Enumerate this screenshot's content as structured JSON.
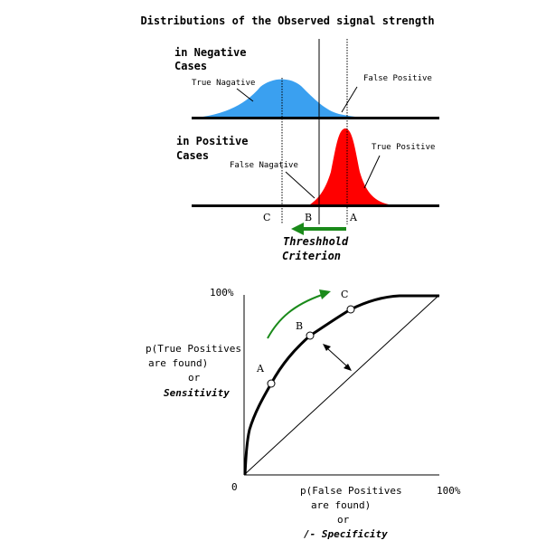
{
  "title": "Distributions of the Observed signal strength",
  "negative_panel": {
    "heading_line1": "in Negative",
    "heading_line2": "Cases",
    "label_true_negative": "True Nagative",
    "label_false_positive": "False Positive",
    "fill_color": "#3aa0f0"
  },
  "positive_panel": {
    "heading_line1": "in Positive",
    "heading_line2": "Cases",
    "label_false_negative": "False Nagative",
    "label_true_positive": "True Positive",
    "fill_color": "#ff0000"
  },
  "threshold": {
    "marker_c": "C",
    "marker_b": "B",
    "marker_a": "A",
    "label_line1": "Threshhold",
    "label_line2": "Criterion",
    "arrow_color": "#1a8a1a"
  },
  "roc": {
    "y_top_label": "100%",
    "y_label_line1": "p(True Positives",
    "y_label_line2": "are found)",
    "y_label_line3": "or",
    "y_label_line4": "Sensitivity",
    "origin_label": "0",
    "x_label_line1": "p(False Positives",
    "x_label_line2": "are found)",
    "x_label_line3": "or",
    "x_label_line4": "/- Specificity",
    "x_right_label": "100%",
    "point_a": "A",
    "point_b": "B",
    "point_c": "C",
    "arrow_color": "#1a8a1a"
  }
}
